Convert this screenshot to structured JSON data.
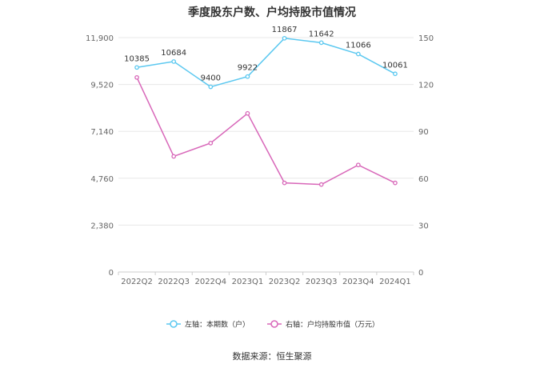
{
  "chart_data": {
    "type": "line",
    "title": "季度股东户数、户均持股市值情况",
    "categories": [
      "2022Q2",
      "2022Q3",
      "2022Q4",
      "2023Q1",
      "2023Q2",
      "2023Q3",
      "2023Q4",
      "2024Q1"
    ],
    "series": [
      {
        "name": "左轴：本期数（户）",
        "axis": "left",
        "color": "#5bc8f0",
        "values": [
          10385,
          10684,
          9400,
          9922,
          11867,
          11642,
          11066,
          10061
        ],
        "labels": [
          "10385",
          "10684",
          "9400",
          "9922",
          "11867",
          "11642",
          "11066",
          "10061"
        ]
      },
      {
        "name": "右轴：户均持股市值（万元）",
        "axis": "right",
        "color": "#d867b9",
        "values": [
          124.5,
          74.0,
          82.5,
          101.5,
          57.0,
          56.0,
          68.5,
          57.0
        ]
      }
    ],
    "y_left": {
      "ticks": [
        "0",
        "2,380",
        "4,760",
        "7,140",
        "9,520",
        "11,900"
      ],
      "range": [
        0,
        11900
      ]
    },
    "y_right": {
      "ticks": [
        "0",
        "30",
        "60",
        "90",
        "120",
        "150"
      ],
      "range": [
        0,
        150
      ]
    },
    "grid": true,
    "legend_position": "bottom"
  },
  "source": "数据来源：恒生聚源"
}
